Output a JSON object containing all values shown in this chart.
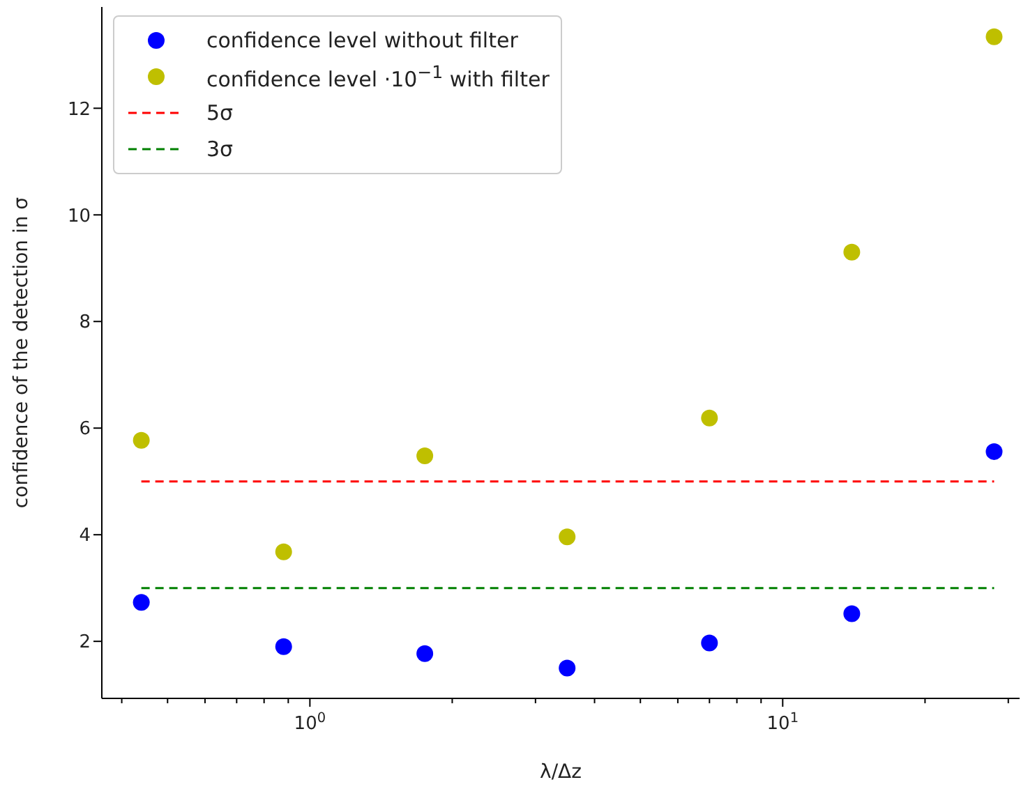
{
  "chart_data": {
    "type": "scatter",
    "xlabel": "λ/Δz",
    "ylabel": "confidence of the detection in σ",
    "log": "x",
    "marker": "circle",
    "legend": "top left",
    "xlim": [
      0.363,
      31.7
    ],
    "ylim": [
      0.93,
      13.9
    ],
    "xticks": [
      {
        "value": 0.4,
        "label": null
      },
      {
        "value": 0.5,
        "label": null
      },
      {
        "value": 0.6,
        "label": null
      },
      {
        "value": 0.7,
        "label": null
      },
      {
        "value": 0.8,
        "label": null
      },
      {
        "value": 0.9,
        "label": null
      },
      {
        "value": 1,
        "label": "10$^{0}$"
      },
      {
        "value": 2,
        "label": null
      },
      {
        "value": 3,
        "label": null
      },
      {
        "value": 4,
        "label": null
      },
      {
        "value": 5,
        "label": null
      },
      {
        "value": 6,
        "label": null
      },
      {
        "value": 7,
        "label": null
      },
      {
        "value": 8,
        "label": null
      },
      {
        "value": 9,
        "label": null
      },
      {
        "value": 10,
        "label": "10$^{1}$"
      },
      {
        "value": 20,
        "label": null
      },
      {
        "value": 30,
        "label": null
      }
    ],
    "yticks": [
      2,
      4,
      6,
      8,
      10,
      12
    ],
    "series": [
      {
        "name": "confidence level without filter",
        "color": "#0000ff",
        "x": [
          0.44,
          0.88,
          1.75,
          3.5,
          7,
          14,
          28
        ],
        "values": [
          2.73,
          1.9,
          1.77,
          1.5,
          1.97,
          2.52,
          5.56
        ]
      },
      {
        "name": "confidence level ·10$^{−1}$ with filter",
        "color": "#bfbf00",
        "x": [
          0.44,
          0.88,
          1.75,
          3.5,
          7,
          14,
          28
        ],
        "values": [
          5.77,
          3.68,
          5.48,
          3.96,
          6.19,
          9.3,
          13.34
        ]
      },
      {
        "name": "5σ",
        "type": "line",
        "line_style": "dashed",
        "marker": "none",
        "color": "#ff0000",
        "x": [
          0.44,
          28
        ],
        "values": [
          5,
          5
        ]
      },
      {
        "name": "3σ",
        "type": "line",
        "line_style": "dashed",
        "marker": "none",
        "color": "#008000",
        "x": [
          0.44,
          28
        ],
        "values": [
          3,
          3
        ]
      }
    ]
  }
}
